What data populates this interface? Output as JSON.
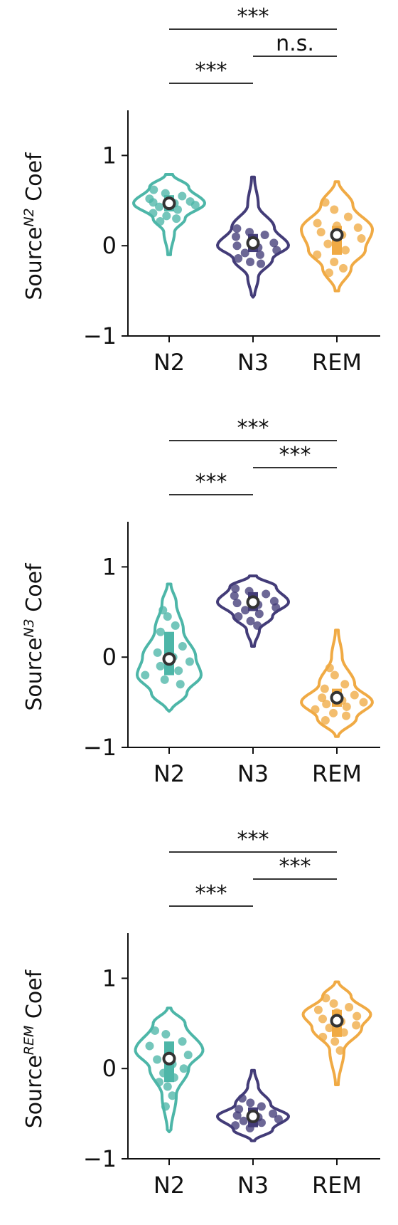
{
  "colors": {
    "N2": "#4DB6A8",
    "N3": "#433C78",
    "REM": "#F0AA44",
    "axis": "#111111",
    "bracket": "#333333"
  },
  "chart_data": [
    {
      "type": "violin",
      "ylabel": {
        "base": "Source",
        "sup": "N2",
        "suffix": " Coef"
      },
      "ylim": [
        -1,
        1.5
      ],
      "yticks": [
        -1,
        0,
        1
      ],
      "categories": [
        "N2",
        "N3",
        "REM"
      ],
      "series": [
        {
          "name": "N2",
          "color": "#4DB6A8",
          "median": 0.47,
          "q1": 0.38,
          "q3": 0.56,
          "violin_min": -0.1,
          "violin_max": 0.79,
          "points": [
            0.62,
            0.58,
            0.55,
            0.52,
            0.5,
            0.49,
            0.48,
            0.47,
            0.45,
            0.43,
            0.4,
            0.36,
            0.33,
            0.3,
            0.27
          ],
          "shape": [
            [
              0.79,
              0.1
            ],
            [
              0.65,
              0.55
            ],
            [
              0.47,
              1.0
            ],
            [
              0.3,
              0.45
            ],
            [
              0.15,
              0.15
            ],
            [
              -0.1,
              0.04
            ]
          ]
        },
        {
          "name": "N3",
          "color": "#433C78",
          "median": 0.03,
          "q1": -0.07,
          "q3": 0.13,
          "violin_min": -0.57,
          "violin_max": 0.76,
          "points": [
            0.19,
            0.15,
            0.12,
            0.1,
            0.06,
            0.03,
            0.0,
            -0.02,
            -0.05,
            -0.08,
            -0.1,
            -0.14,
            -0.18,
            -0.2
          ],
          "shape": [
            [
              0.76,
              0.04
            ],
            [
              0.45,
              0.15
            ],
            [
              0.2,
              0.6
            ],
            [
              0.0,
              1.0
            ],
            [
              -0.15,
              0.55
            ],
            [
              -0.35,
              0.15
            ],
            [
              -0.57,
              0.04
            ]
          ]
        },
        {
          "name": "REM",
          "color": "#F0AA44",
          "median": 0.12,
          "q1": -0.1,
          "q3": 0.22,
          "violin_min": -0.5,
          "violin_max": 0.71,
          "points": [
            0.48,
            0.4,
            0.32,
            0.25,
            0.22,
            0.2,
            0.15,
            0.12,
            0.08,
            0.02,
            -0.05,
            -0.1,
            -0.18,
            -0.25,
            -0.3
          ],
          "shape": [
            [
              0.71,
              0.05
            ],
            [
              0.45,
              0.45
            ],
            [
              0.18,
              1.0
            ],
            [
              -0.05,
              0.8
            ],
            [
              -0.25,
              0.4
            ],
            [
              -0.5,
              0.05
            ]
          ]
        }
      ],
      "brackets": [
        {
          "from": "N2",
          "to": "N3",
          "label": "***",
          "level": 1
        },
        {
          "from": "N3",
          "to": "REM",
          "label": "n.s.",
          "level": 2
        },
        {
          "from": "N2",
          "to": "REM",
          "label": "***",
          "level": 3
        }
      ]
    },
    {
      "type": "violin",
      "ylabel": {
        "base": "Source",
        "sup": "N3",
        "suffix": " Coef"
      },
      "ylim": [
        -1,
        1.5
      ],
      "yticks": [
        -1,
        0,
        1
      ],
      "categories": [
        "N2",
        "N3",
        "REM"
      ],
      "series": [
        {
          "name": "N2",
          "color": "#4DB6A8",
          "median": -0.02,
          "q1": -0.2,
          "q3": 0.28,
          "violin_min": -0.6,
          "violin_max": 0.81,
          "points": [
            0.52,
            0.45,
            0.35,
            0.28,
            0.2,
            0.12,
            0.05,
            0.0,
            -0.05,
            -0.1,
            -0.15,
            -0.2,
            -0.25,
            -0.3
          ],
          "shape": [
            [
              0.81,
              0.05
            ],
            [
              0.6,
              0.2
            ],
            [
              0.3,
              0.4
            ],
            [
              0.0,
              0.75
            ],
            [
              -0.2,
              0.9
            ],
            [
              -0.4,
              0.5
            ],
            [
              -0.6,
              0.05
            ]
          ]
        },
        {
          "name": "N3",
          "color": "#433C78",
          "median": 0.61,
          "q1": 0.51,
          "q3": 0.72,
          "violin_min": 0.12,
          "violin_max": 0.9,
          "points": [
            0.76,
            0.73,
            0.7,
            0.68,
            0.65,
            0.62,
            0.6,
            0.58,
            0.55,
            0.52,
            0.48,
            0.45,
            0.4,
            0.35
          ],
          "shape": [
            [
              0.9,
              0.1
            ],
            [
              0.78,
              0.65
            ],
            [
              0.61,
              1.0
            ],
            [
              0.45,
              0.55
            ],
            [
              0.3,
              0.18
            ],
            [
              0.12,
              0.04
            ]
          ]
        },
        {
          "name": "REM",
          "color": "#F0AA44",
          "median": -0.45,
          "q1": -0.55,
          "q3": -0.35,
          "violin_min": -0.88,
          "violin_max": 0.3,
          "points": [
            -0.12,
            -0.2,
            -0.3,
            -0.35,
            -0.4,
            -0.42,
            -0.45,
            -0.48,
            -0.5,
            -0.52,
            -0.55,
            -0.58,
            -0.62,
            -0.65,
            -0.7
          ],
          "shape": [
            [
              0.3,
              0.04
            ],
            [
              0.0,
              0.15
            ],
            [
              -0.3,
              0.5
            ],
            [
              -0.5,
              1.0
            ],
            [
              -0.68,
              0.55
            ],
            [
              -0.88,
              0.04
            ]
          ]
        }
      ],
      "brackets": [
        {
          "from": "N2",
          "to": "N3",
          "label": "***",
          "level": 1
        },
        {
          "from": "N3",
          "to": "REM",
          "label": "***",
          "level": 2
        },
        {
          "from": "N2",
          "to": "REM",
          "label": "***",
          "level": 3
        }
      ]
    },
    {
      "type": "violin",
      "ylabel": {
        "base": "Source",
        "sup": "REM",
        "suffix": " Coef"
      },
      "ylim": [
        -1,
        1.5
      ],
      "yticks": [
        -1,
        0,
        1
      ],
      "categories": [
        "N2",
        "N3",
        "REM"
      ],
      "series": [
        {
          "name": "N2",
          "color": "#4DB6A8",
          "median": 0.11,
          "q1": -0.15,
          "q3": 0.3,
          "violin_min": -0.7,
          "violin_max": 0.67,
          "points": [
            0.42,
            0.38,
            0.3,
            0.25,
            0.2,
            0.15,
            0.1,
            0.05,
            0.0,
            -0.05,
            -0.1,
            -0.15,
            -0.2,
            -0.3,
            -0.42
          ],
          "shape": [
            [
              0.67,
              0.05
            ],
            [
              0.5,
              0.45
            ],
            [
              0.2,
              0.95
            ],
            [
              0.0,
              0.55
            ],
            [
              -0.3,
              0.2
            ],
            [
              -0.7,
              0.05
            ]
          ]
        },
        {
          "name": "N3",
          "color": "#433C78",
          "median": -0.53,
          "q1": -0.65,
          "q3": -0.43,
          "violin_min": -0.8,
          "violin_max": -0.02,
          "points": [
            -0.33,
            -0.38,
            -0.42,
            -0.45,
            -0.48,
            -0.5,
            -0.52,
            -0.54,
            -0.56,
            -0.58,
            -0.6,
            -0.63,
            -0.66
          ],
          "shape": [
            [
              -0.02,
              0.04
            ],
            [
              -0.2,
              0.15
            ],
            [
              -0.4,
              0.5
            ],
            [
              -0.53,
              1.0
            ],
            [
              -0.68,
              0.55
            ],
            [
              -0.8,
              0.05
            ]
          ]
        },
        {
          "name": "REM",
          "color": "#F0AA44",
          "median": 0.53,
          "q1": 0.35,
          "q3": 0.65,
          "violin_min": -0.18,
          "violin_max": 0.96,
          "points": [
            0.78,
            0.72,
            0.68,
            0.65,
            0.62,
            0.58,
            0.55,
            0.52,
            0.48,
            0.45,
            0.4,
            0.35,
            0.3,
            0.2
          ],
          "shape": [
            [
              0.96,
              0.05
            ],
            [
              0.8,
              0.4
            ],
            [
              0.6,
              0.95
            ],
            [
              0.45,
              0.7
            ],
            [
              0.2,
              0.2
            ],
            [
              -0.18,
              0.04
            ]
          ]
        }
      ],
      "brackets": [
        {
          "from": "N2",
          "to": "N3",
          "label": "***",
          "level": 1
        },
        {
          "from": "N3",
          "to": "REM",
          "label": "***",
          "level": 2
        },
        {
          "from": "N2",
          "to": "REM",
          "label": "***",
          "level": 3
        }
      ]
    }
  ]
}
